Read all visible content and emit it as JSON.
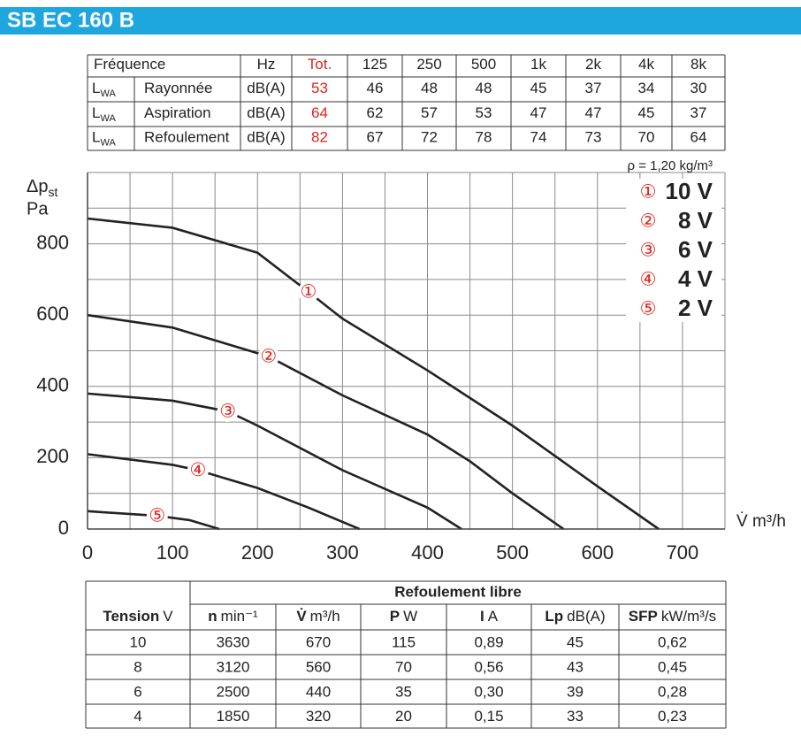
{
  "header": {
    "title": "SB EC 160 B"
  },
  "sound_table": {
    "header": [
      "Fréquence",
      "Hz",
      "Tot.",
      "125",
      "250",
      "500",
      "1k",
      "2k",
      "4k",
      "8k"
    ],
    "lwa": {
      "base": "L",
      "sub": "WA"
    },
    "unit": "dB(A)",
    "rows": [
      {
        "name": "Rayonnée",
        "tot": 53,
        "values": [
          46,
          48,
          48,
          45,
          37,
          34,
          30
        ]
      },
      {
        "name": "Aspiration",
        "tot": 64,
        "values": [
          62,
          57,
          53,
          47,
          47,
          45,
          37
        ]
      },
      {
        "name": "Refoulement",
        "tot": 82,
        "values": [
          67,
          72,
          78,
          74,
          73,
          70,
          64
        ]
      }
    ]
  },
  "chart_data": {
    "type": "line",
    "y_label": {
      "main": "Δp",
      "sub": "st",
      "unit": "Pa"
    },
    "x_label": "V̇ m³/h",
    "note": "ρ = 1,20 kg/m³",
    "xlim": [
      0,
      750
    ],
    "ylim": [
      0,
      1000
    ],
    "xticks": [
      0,
      100,
      200,
      300,
      400,
      500,
      600,
      700
    ],
    "yticks": [
      0,
      200,
      400,
      600,
      800
    ],
    "xgrid": [
      0,
      50,
      100,
      150,
      200,
      250,
      300,
      350,
      400,
      450,
      500,
      550,
      600,
      650,
      700,
      750
    ],
    "ygrid": [
      0,
      100,
      200,
      300,
      400,
      500,
      600,
      700,
      800,
      900,
      1000
    ],
    "grid": true,
    "legend": "upper right",
    "marker_color": "#e2231a",
    "series": [
      {
        "name": "10 V",
        "marker": "①",
        "color": "#222222",
        "x": [
          0,
          100,
          200,
          260,
          300,
          400,
          500,
          600,
          672
        ],
        "values": [
          871,
          845,
          775,
          665,
          590,
          445,
          290,
          120,
          0
        ]
      },
      {
        "name": "8 V",
        "marker": "②",
        "color": "#222222",
        "x": [
          0,
          100,
          213,
          300,
          400,
          450,
          500,
          560
        ],
        "values": [
          600,
          565,
          484,
          375,
          265,
          190,
          100,
          0
        ]
      },
      {
        "name": "6 V",
        "marker": "③",
        "color": "#222222",
        "x": [
          0,
          100,
          165,
          200,
          300,
          400,
          440
        ],
        "values": [
          380,
          360,
          330,
          290,
          165,
          60,
          0
        ]
      },
      {
        "name": "4 V",
        "marker": "④",
        "color": "#222222",
        "x": [
          0,
          100,
          130,
          200,
          260,
          320
        ],
        "values": [
          210,
          180,
          165,
          115,
          60,
          0
        ]
      },
      {
        "name": "2 V",
        "marker": "⑤",
        "color": "#222222",
        "x": [
          0,
          82,
          120,
          155
        ],
        "values": [
          50,
          37,
          25,
          0
        ]
      }
    ]
  },
  "perf_table": {
    "group": "Refoulement libre",
    "columns": [
      {
        "name": "Tension",
        "unit": "V"
      },
      {
        "name": "n",
        "unit": "min⁻¹"
      },
      {
        "name": "V̇",
        "unit": "m³/h"
      },
      {
        "name": "P",
        "unit": "W"
      },
      {
        "name": "I",
        "unit": "A"
      },
      {
        "name": "Lp",
        "unit": "dB(A)"
      },
      {
        "name": "SFP",
        "unit": "kW/m³/s"
      }
    ],
    "rows": [
      [
        "10",
        "3630",
        "670",
        "115",
        "0,89",
        "45",
        "0,62"
      ],
      [
        "8",
        "3120",
        "560",
        "70",
        "0,56",
        "43",
        "0,45"
      ],
      [
        "6",
        "2500",
        "440",
        "35",
        "0,30",
        "39",
        "0,28"
      ],
      [
        "4",
        "1850",
        "320",
        "20",
        "0,15",
        "33",
        "0,23"
      ]
    ]
  }
}
